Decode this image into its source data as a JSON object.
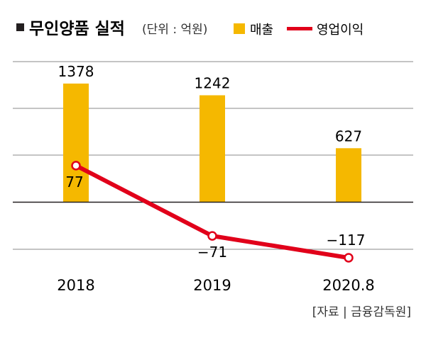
{
  "chart_data": {
    "type": "bar+line",
    "title": "무인양품 실적",
    "unit_label": "(단위 : 억원)",
    "categories": [
      "2018",
      "2019",
      "2020.8"
    ],
    "series": [
      {
        "name": "매출",
        "type": "bar",
        "color": "#f5b800",
        "values": [
          1378,
          1242,
          627
        ]
      },
      {
        "name": "영업이익",
        "type": "line",
        "color": "#e1001a",
        "values": [
          77,
          -71,
          -117
        ]
      }
    ],
    "point_labels": {
      "bar": [
        "1378",
        "1242",
        "627"
      ],
      "line": [
        "77",
        "−71",
        "−117"
      ]
    },
    "source": "[자료 | 금융감독원]",
    "grid": true,
    "legend_position": "top"
  }
}
